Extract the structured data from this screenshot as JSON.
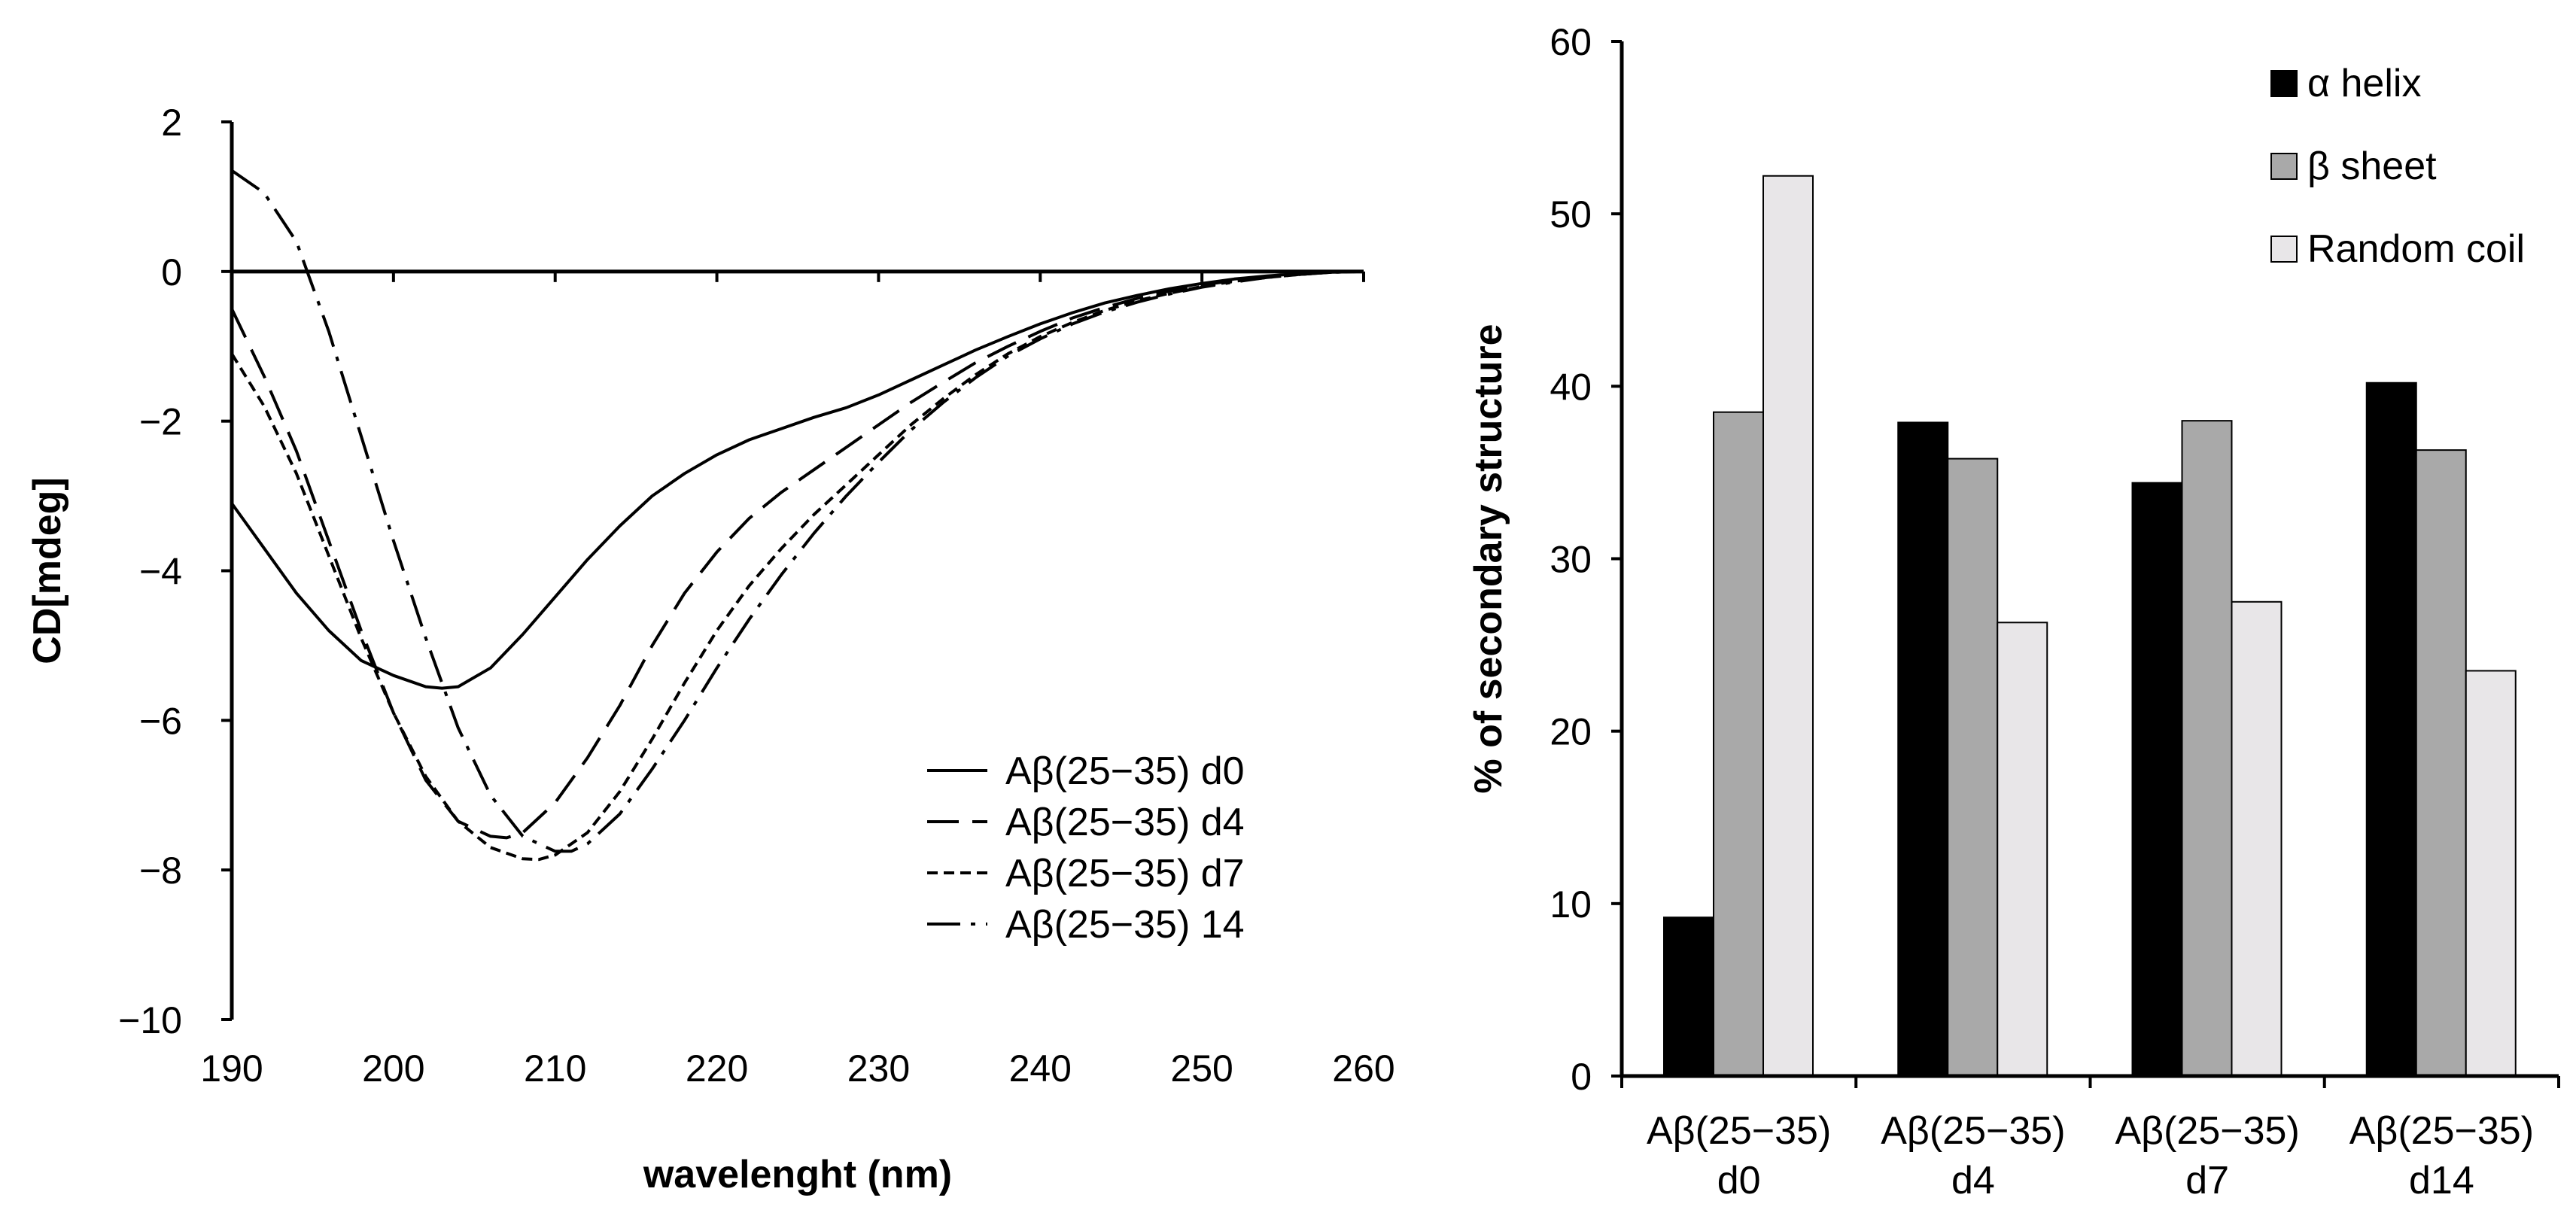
{
  "chart_data": [
    {
      "type": "line",
      "title": "",
      "xlabel": "wavelenght (nm)",
      "ylabel": "CD[mdeg]",
      "xlim": [
        190,
        260
      ],
      "ylim": [
        -10,
        2
      ],
      "xticks": [
        "190",
        "200",
        "210",
        "220",
        "230",
        "240",
        "250",
        "260"
      ],
      "yticks": [
        "2",
        "0",
        "−2",
        "−4",
        "−6",
        "−8",
        "−10"
      ],
      "xtick_values": [
        190,
        200,
        210,
        220,
        230,
        240,
        250,
        260
      ],
      "ytick_values": [
        2,
        0,
        -2,
        -4,
        -6,
        -8,
        -10
      ],
      "legend_position": "lower-right",
      "series": [
        {
          "name": "Aβ(25−35) d0",
          "style": "solid",
          "x": [
            190,
            192,
            194,
            196,
            198,
            200,
            202,
            203,
            204,
            206,
            208,
            210,
            212,
            214,
            216,
            218,
            220,
            222,
            224,
            226,
            228,
            230,
            232,
            234,
            236,
            238,
            240,
            242,
            244,
            246,
            248,
            250,
            252,
            254,
            256,
            258,
            260
          ],
          "y": [
            -3.1,
            -3.7,
            -4.3,
            -4.8,
            -5.2,
            -5.4,
            -5.55,
            -5.57,
            -5.55,
            -5.3,
            -4.85,
            -4.35,
            -3.85,
            -3.4,
            -3.0,
            -2.7,
            -2.45,
            -2.25,
            -2.1,
            -1.95,
            -1.82,
            -1.65,
            -1.45,
            -1.25,
            -1.05,
            -0.87,
            -0.7,
            -0.55,
            -0.42,
            -0.32,
            -0.23,
            -0.16,
            -0.1,
            -0.06,
            -0.03,
            -0.01,
            0
          ]
        },
        {
          "name": "Aβ(25−35) d4",
          "style": "dashed",
          "x": [
            190,
            192,
            194,
            196,
            198,
            200,
            202,
            204,
            206,
            207,
            208,
            210,
            212,
            214,
            216,
            218,
            220,
            222,
            224,
            226,
            228,
            230,
            232,
            234,
            236,
            238,
            240,
            242,
            244,
            246,
            248,
            250,
            252,
            254,
            256,
            258,
            260
          ],
          "y": [
            -0.5,
            -1.4,
            -2.4,
            -3.6,
            -4.8,
            -5.9,
            -6.8,
            -7.35,
            -7.55,
            -7.57,
            -7.5,
            -7.1,
            -6.5,
            -5.8,
            -5.0,
            -4.3,
            -3.75,
            -3.3,
            -2.95,
            -2.65,
            -2.35,
            -2.05,
            -1.75,
            -1.48,
            -1.22,
            -1.0,
            -0.8,
            -0.62,
            -0.48,
            -0.36,
            -0.26,
            -0.18,
            -0.12,
            -0.07,
            -0.04,
            -0.01,
            0
          ]
        },
        {
          "name": "Aβ(25−35) d7",
          "style": "dotted",
          "x": [
            190,
            192,
            194,
            196,
            198,
            200,
            202,
            204,
            206,
            208,
            209,
            210,
            212,
            214,
            216,
            218,
            220,
            222,
            224,
            226,
            228,
            230,
            232,
            234,
            236,
            238,
            240,
            242,
            244,
            246,
            248,
            250,
            252,
            254,
            256,
            258,
            260
          ],
          "y": [
            -1.1,
            -1.8,
            -2.7,
            -3.8,
            -4.9,
            -5.9,
            -6.75,
            -7.35,
            -7.7,
            -7.85,
            -7.86,
            -7.8,
            -7.5,
            -6.95,
            -6.25,
            -5.5,
            -4.8,
            -4.2,
            -3.7,
            -3.25,
            -2.85,
            -2.45,
            -2.05,
            -1.7,
            -1.38,
            -1.1,
            -0.87,
            -0.68,
            -0.52,
            -0.39,
            -0.29,
            -0.2,
            -0.13,
            -0.08,
            -0.04,
            -0.01,
            0
          ]
        },
        {
          "name": "Aβ(25−35) 14",
          "style": "dashdot",
          "x": [
            190,
            192,
            194,
            196,
            198,
            200,
            202,
            204,
            206,
            208,
            210,
            211,
            212,
            214,
            216,
            218,
            220,
            222,
            224,
            226,
            228,
            230,
            232,
            234,
            236,
            238,
            240,
            242,
            244,
            246,
            248,
            250,
            252,
            254,
            256,
            258,
            260
          ],
          "y": [
            1.35,
            1.05,
            0.4,
            -0.8,
            -2.2,
            -3.6,
            -4.9,
            -6.1,
            -7.0,
            -7.55,
            -7.75,
            -7.75,
            -7.65,
            -7.25,
            -6.65,
            -6.0,
            -5.3,
            -4.65,
            -4.05,
            -3.5,
            -3.0,
            -2.55,
            -2.12,
            -1.75,
            -1.42,
            -1.13,
            -0.9,
            -0.7,
            -0.54,
            -0.41,
            -0.3,
            -0.21,
            -0.14,
            -0.08,
            -0.04,
            -0.01,
            0
          ]
        }
      ]
    },
    {
      "type": "bar",
      "title": "",
      "xlabel": "",
      "ylabel": "% of secondary structure",
      "ylim": [
        0,
        60
      ],
      "yticks": [
        "60",
        "50",
        "40",
        "30",
        "20",
        "10",
        "0"
      ],
      "ytick_values": [
        60,
        50,
        40,
        30,
        20,
        10,
        0
      ],
      "legend_position": "top-right",
      "categories": [
        [
          "Aβ(25−35)",
          "d0"
        ],
        [
          "Aβ(25−35)",
          "d4"
        ],
        [
          "Aβ(25−35)",
          "d7"
        ],
        [
          "Aβ(25−35)",
          "d14"
        ]
      ],
      "series": [
        {
          "name": "α helix",
          "color": "#000000",
          "values": [
            9.2,
            37.9,
            34.4,
            40.2
          ]
        },
        {
          "name": "β sheet",
          "color": "#a9a9a9",
          "values": [
            38.5,
            35.8,
            38.0,
            36.3
          ]
        },
        {
          "name": "Random coil",
          "color": "#e8e6e8",
          "values": [
            52.2,
            26.3,
            27.5,
            23.5
          ]
        }
      ]
    }
  ]
}
